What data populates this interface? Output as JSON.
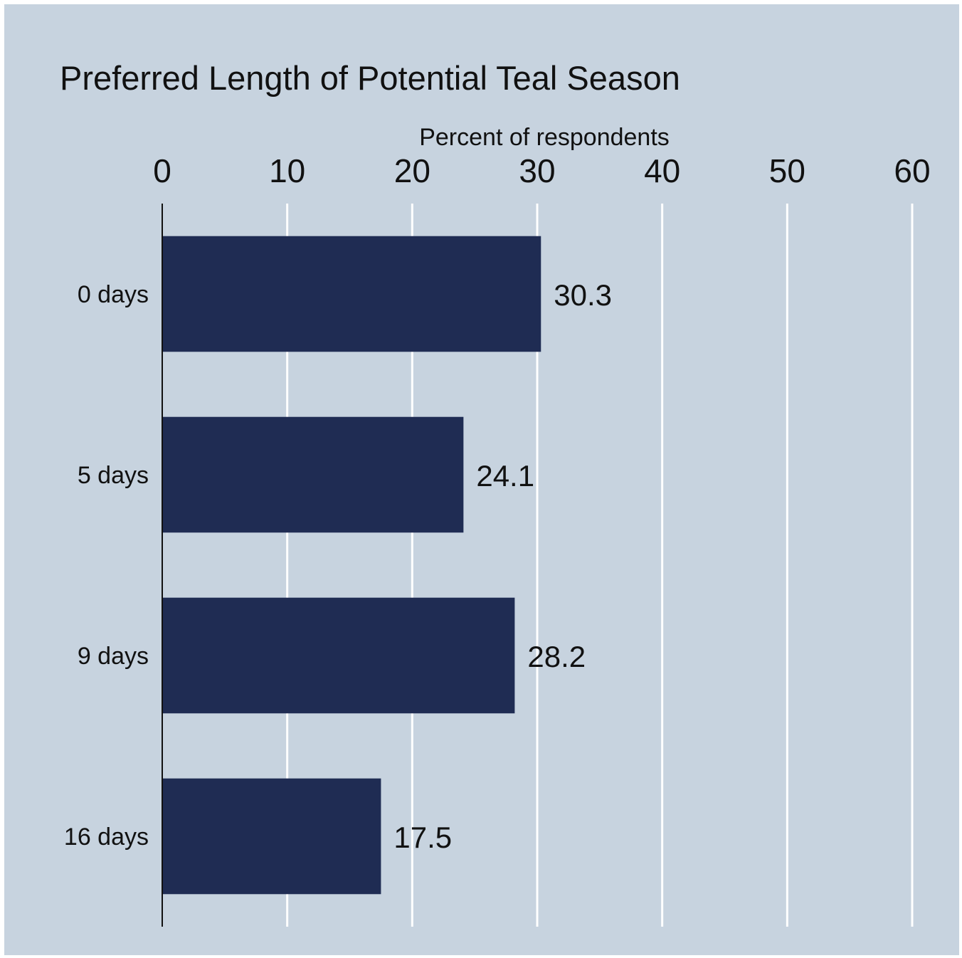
{
  "chart_data": {
    "type": "bar",
    "orientation": "horizontal",
    "title": "Preferred Length of Potential Teal Season",
    "xlabel": "Percent of respondents",
    "ylabel": "",
    "categories": [
      "0 days",
      "5 days",
      "9 days",
      "16 days"
    ],
    "values": [
      30.3,
      24.1,
      28.2,
      17.5
    ],
    "value_labels": [
      "30.3",
      "24.1",
      "28.2",
      "17.5"
    ],
    "xlim": [
      0,
      60
    ],
    "ticks": [
      "0",
      "10",
      "20",
      "30",
      "40",
      "50",
      "60"
    ],
    "tick_values": [
      0,
      10,
      20,
      30,
      40,
      50,
      60
    ],
    "x_axis_position": "top",
    "grid": true,
    "legend": "none",
    "colors": {
      "background": "#c7d3df",
      "bar": "#1f2c53",
      "grid": "#ffffff",
      "text": "#111111"
    }
  }
}
